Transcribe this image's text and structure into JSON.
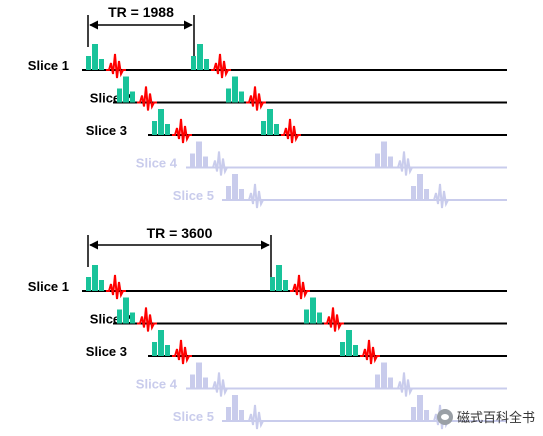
{
  "diagram": {
    "colors": {
      "active_line": "#000000",
      "faded_line": "#c9ccec",
      "active_label": "#000000",
      "faded_label": "#c9ccec",
      "pulse": "#19c39a",
      "pulse_faded": "#c9ccec",
      "echo": "#ff0000",
      "echo_faded": "#c9ccec"
    },
    "panels": [
      {
        "tr_label": "TR = 1988",
        "slices": [
          {
            "label": "Slice 1",
            "faded": false
          },
          {
            "label": "Slice 2",
            "faded": false
          },
          {
            "label": "Slice 3",
            "faded": false
          },
          {
            "label": "Slice 4",
            "faded": true
          },
          {
            "label": "Slice 5",
            "faded": true
          }
        ]
      },
      {
        "tr_label": "TR = 3600",
        "slices": [
          {
            "label": "Slice 1",
            "faded": false
          },
          {
            "label": "Slice 2",
            "faded": false
          },
          {
            "label": "Slice 3",
            "faded": false
          },
          {
            "label": "Slice 4",
            "faded": true
          },
          {
            "label": "Slice 5",
            "faded": true
          }
        ]
      }
    ]
  },
  "watermark": {
    "text": "磁式百科全书",
    "icon": "wechat-icon"
  }
}
